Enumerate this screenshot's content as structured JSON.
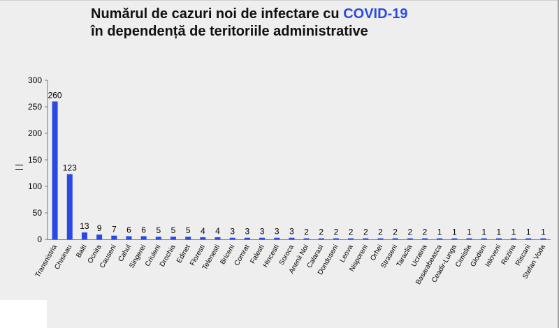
{
  "title": {
    "line1_prefix": "Numărul de cazuri noi de infectare cu ",
    "line1_accent": "COVID-19",
    "line2": "în dependență de teritoriile administrative"
  },
  "colors": {
    "bar": "#2a48e6",
    "accent": "#2a4be0"
  },
  "chart_data": {
    "type": "bar",
    "categories": [
      "Transnistria",
      "Chisinau",
      "Balti",
      "Ocnita",
      "Causeni",
      "Cahul",
      "Singerei",
      "Criuleni",
      "Drochia",
      "Edinet",
      "Floresti",
      "Telenesti",
      "Briceni",
      "Comrat",
      "Falesti",
      "Hincesti",
      "Soroca",
      "Anenii Noi",
      "Calarasi",
      "Donduseni",
      "Leova",
      "Nisporeni",
      "Orhei",
      "Straseni",
      "Taraclia",
      "Ucraina",
      "Basarabeasca",
      "Ceadir-Lunga",
      "Cimislia",
      "Glodeni",
      "Ialoveni",
      "Rezina",
      "Riscani",
      "Stefan Voda"
    ],
    "values": [
      260,
      123,
      13,
      9,
      7,
      6,
      6,
      5,
      5,
      5,
      4,
      4,
      3,
      3,
      3,
      3,
      3,
      2,
      2,
      2,
      2,
      2,
      2,
      2,
      2,
      2,
      1,
      1,
      1,
      1,
      1,
      1,
      1,
      1
    ],
    "ylim": [
      0,
      300
    ],
    "yticks": [
      0,
      50,
      100,
      150,
      200,
      250,
      300
    ],
    "data_labels": true,
    "grid": false
  }
}
